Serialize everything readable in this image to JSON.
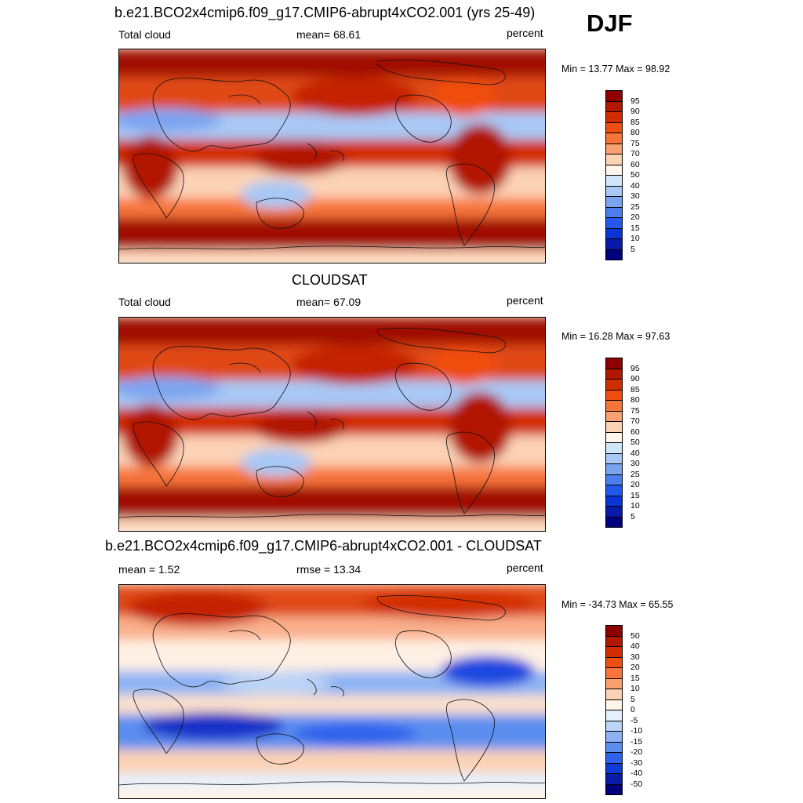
{
  "season": "DJF",
  "panels": [
    {
      "title": "b.e21.BCO2x4cmip6.f09_g17.CMIP6-abrupt4xCO2.001 (yrs 25-49)",
      "left_label": "Total cloud",
      "center_label": "mean=  68.61",
      "units": "percent",
      "minmax": "Min =  13.77 Max =  98.92",
      "colorbar_labels": [
        "95",
        "90",
        "85",
        "80",
        "75",
        "70",
        "60",
        "50",
        "40",
        "30",
        "25",
        "20",
        "15",
        "10",
        "5"
      ],
      "colorbar_colors": [
        "#8e0000",
        "#b21800",
        "#d22d00",
        "#f04e10",
        "#f7753b",
        "#f9a070",
        "#fcd2b5",
        "#fff5ea",
        "#d2e6fb",
        "#a8c8f5",
        "#7ba4f0",
        "#4c7ef0",
        "#2258ee",
        "#0a34d6",
        "#0a1aa8",
        "#00007e"
      ]
    },
    {
      "title": "CLOUDSAT",
      "left_label": "Total cloud",
      "center_label": "mean=  67.09",
      "units": "percent",
      "minmax": "Min =  16.28 Max =  97.63",
      "colorbar_labels": [
        "95",
        "90",
        "85",
        "80",
        "75",
        "70",
        "60",
        "50",
        "40",
        "30",
        "25",
        "20",
        "15",
        "10",
        "5"
      ],
      "colorbar_colors": [
        "#8e0000",
        "#b21800",
        "#d22d00",
        "#f04e10",
        "#f7753b",
        "#f9a070",
        "#fcd2b5",
        "#fff5ea",
        "#d2e6fb",
        "#a8c8f5",
        "#7ba4f0",
        "#4c7ef0",
        "#2258ee",
        "#0a34d6",
        "#0a1aa8",
        "#00007e"
      ]
    },
    {
      "title": "b.e21.BCO2x4cmip6.f09_g17.CMIP6-abrupt4xCO2.001 - CLOUDSAT",
      "left_label": "mean =   1.52",
      "center_label": "rmse =  13.34",
      "units": "percent",
      "minmax": "Min = -34.73 Max =  65.55",
      "colorbar_labels": [
        "50",
        "40",
        "30",
        "20",
        "15",
        "10",
        "5",
        "0",
        "-5",
        "-10",
        "-15",
        "-20",
        "-30",
        "-40",
        "-50"
      ],
      "colorbar_colors": [
        "#8e0000",
        "#b21800",
        "#d22d00",
        "#f04e10",
        "#f7753b",
        "#f9a070",
        "#fcd2b5",
        "#fff5ea",
        "#e6f0fc",
        "#bcd4f7",
        "#8cb2f3",
        "#5c8ef0",
        "#2e62ec",
        "#0e3ad6",
        "#081ca8",
        "#00007e"
      ]
    }
  ]
}
